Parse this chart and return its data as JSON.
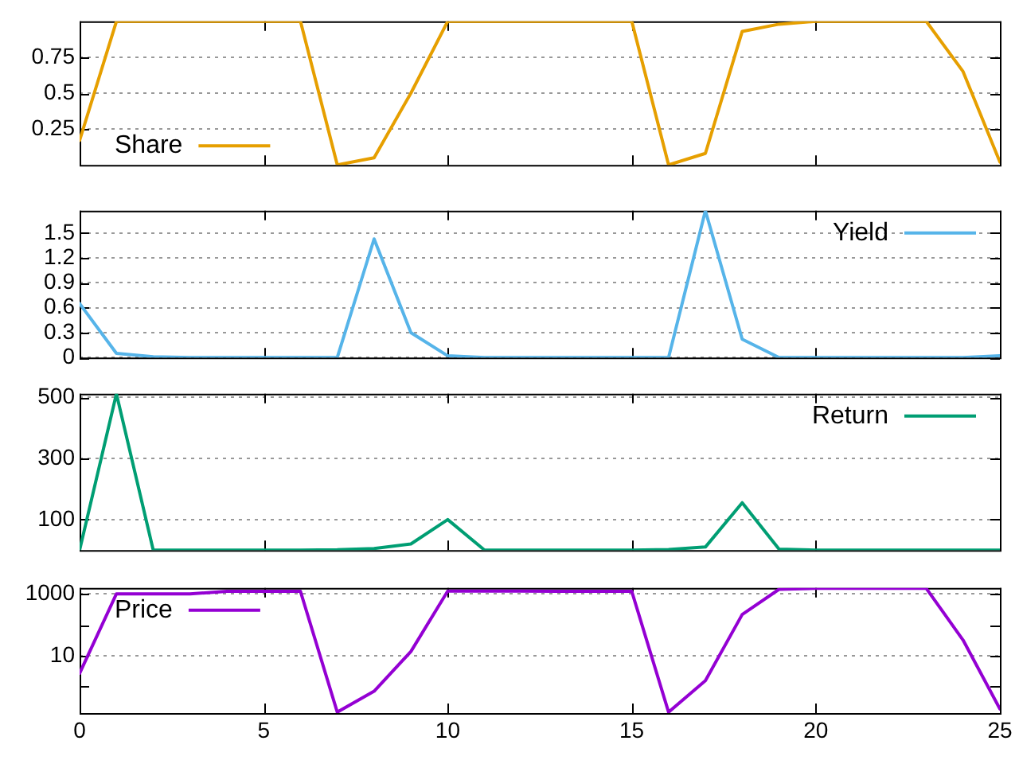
{
  "chart_data": [
    {
      "type": "line",
      "x": [
        0,
        1,
        2,
        3,
        4,
        5,
        6,
        7,
        8,
        9,
        10,
        11,
        12,
        13,
        14,
        15,
        16,
        17,
        18,
        19,
        20,
        21,
        22,
        23,
        24,
        25
      ],
      "xlim": [
        0,
        25
      ],
      "xticks": [
        0,
        5,
        10,
        15,
        20,
        25
      ],
      "ylim": [
        0,
        1
      ],
      "yticks": [
        0.25,
        0.5,
        0.75
      ],
      "grid": "y",
      "legend": "bottom left",
      "tick_labels": "y",
      "series": [
        {
          "name": "Share",
          "color": "#e69f00",
          "values": [
            0.17,
            1,
            1,
            1,
            1,
            1,
            1,
            0,
            0.05,
            0.5,
            1,
            1,
            1,
            1,
            1,
            1,
            0,
            0.08,
            0.93,
            0.98,
            1,
            1,
            1,
            1,
            0.65,
            0.02
          ]
        }
      ]
    },
    {
      "type": "line",
      "x": [
        0,
        1,
        2,
        3,
        4,
        5,
        6,
        7,
        8,
        9,
        10,
        11,
        12,
        13,
        14,
        15,
        16,
        17,
        18,
        19,
        20,
        21,
        22,
        23,
        24,
        25
      ],
      "xlim": [
        0,
        25
      ],
      "xticks": [
        0,
        5,
        10,
        15,
        20,
        25
      ],
      "ylim": [
        0,
        1.77
      ],
      "yticks": [
        0,
        0.3,
        0.6,
        0.9,
        1.2,
        1.5
      ],
      "grid": "y",
      "legend": "top right",
      "tick_labels": "y",
      "series": [
        {
          "name": "Yield",
          "color": "#56b4e9",
          "values": [
            0.65,
            0.05,
            0.01,
            0,
            0,
            0,
            0,
            0,
            1.43,
            0.3,
            0.02,
            0,
            0,
            0,
            0,
            0,
            0,
            1.77,
            0.22,
            0,
            0,
            0,
            0,
            0,
            0,
            0.02
          ]
        }
      ]
    },
    {
      "type": "line",
      "x": [
        0,
        1,
        2,
        3,
        4,
        5,
        6,
        7,
        8,
        9,
        10,
        11,
        12,
        13,
        14,
        15,
        16,
        17,
        18,
        19,
        20,
        21,
        22,
        23,
        24,
        25
      ],
      "xlim": [
        0,
        25
      ],
      "xticks": [
        0,
        5,
        10,
        15,
        20,
        25
      ],
      "ylim": [
        0,
        512
      ],
      "yticks": [
        100,
        300,
        500
      ],
      "grid": "y",
      "legend": "top right",
      "tick_labels": "y",
      "series": [
        {
          "name": "Return",
          "color": "#009e73",
          "values": [
            0,
            512,
            0,
            0,
            0,
            0,
            0,
            1,
            5,
            20,
            100,
            0,
            0,
            0,
            0,
            0,
            2,
            10,
            155,
            3,
            0,
            0,
            0,
            0,
            0,
            0
          ]
        }
      ]
    },
    {
      "type": "line",
      "x": [
        0,
        1,
        2,
        3,
        4,
        5,
        6,
        7,
        8,
        9,
        10,
        11,
        12,
        13,
        14,
        15,
        16,
        17,
        18,
        19,
        20,
        21,
        22,
        23,
        24,
        25
      ],
      "xlim": [
        0,
        25
      ],
      "xticks": [
        0,
        5,
        10,
        15,
        20,
        25
      ],
      "ylim": [
        0.14,
        1550
      ],
      "yticks": [
        {
          "value": 1,
          "label": null
        },
        10,
        {
          "value": 100,
          "label": null
        },
        1000
      ],
      "log": "y",
      "grid": "y",
      "legend": "top left",
      "series": [
        {
          "name": "Price",
          "color": "#9400d3",
          "values": [
            2.7,
            1000,
            1000,
            1000,
            1200,
            1200,
            1200,
            0.15,
            0.71,
            13.7,
            1230,
            1230,
            1230,
            1200,
            1200,
            1200,
            0.15,
            1.57,
            215,
            1400,
            1500,
            1500,
            1500,
            1500,
            32,
            0.19
          ]
        }
      ]
    }
  ]
}
